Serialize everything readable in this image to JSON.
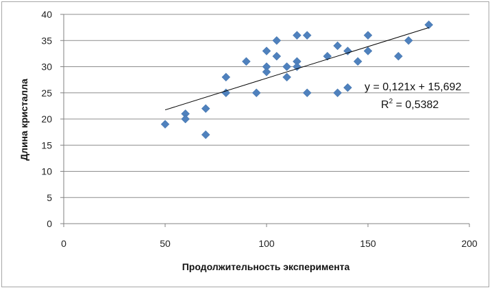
{
  "chart_data": {
    "type": "scatter",
    "xlabel": "Продолжительность эксперимента",
    "ylabel": "Длина кристалла",
    "xlim": [
      0,
      200
    ],
    "ylim": [
      0,
      40
    ],
    "x_ticks": [
      "0",
      "50",
      "100",
      "150",
      "200"
    ],
    "y_ticks": [
      "0",
      "5",
      "10",
      "15",
      "20",
      "25",
      "30",
      "35",
      "40"
    ],
    "grid": "horizontal",
    "marker_color": "#4f81bd",
    "trendline_color": "#000000",
    "points": [
      {
        "x": 50,
        "y": 19
      },
      {
        "x": 60,
        "y": 21
      },
      {
        "x": 60,
        "y": 20
      },
      {
        "x": 70,
        "y": 22
      },
      {
        "x": 70,
        "y": 17
      },
      {
        "x": 80,
        "y": 28
      },
      {
        "x": 80,
        "y": 25
      },
      {
        "x": 90,
        "y": 31
      },
      {
        "x": 95,
        "y": 25
      },
      {
        "x": 100,
        "y": 33
      },
      {
        "x": 100,
        "y": 30
      },
      {
        "x": 100,
        "y": 29
      },
      {
        "x": 105,
        "y": 35
      },
      {
        "x": 105,
        "y": 32
      },
      {
        "x": 110,
        "y": 30
      },
      {
        "x": 110,
        "y": 28
      },
      {
        "x": 115,
        "y": 36
      },
      {
        "x": 115,
        "y": 31
      },
      {
        "x": 115,
        "y": 30
      },
      {
        "x": 120,
        "y": 36
      },
      {
        "x": 120,
        "y": 25
      },
      {
        "x": 130,
        "y": 32
      },
      {
        "x": 135,
        "y": 34
      },
      {
        "x": 135,
        "y": 25
      },
      {
        "x": 140,
        "y": 33
      },
      {
        "x": 140,
        "y": 26
      },
      {
        "x": 145,
        "y": 31
      },
      {
        "x": 150,
        "y": 36
      },
      {
        "x": 150,
        "y": 33
      },
      {
        "x": 165,
        "y": 32
      },
      {
        "x": 170,
        "y": 35
      },
      {
        "x": 180,
        "y": 38
      }
    ],
    "trendline": {
      "slope": 0.121,
      "intercept": 15.692,
      "x_from": 50,
      "x_to": 180
    },
    "equation_label": "y = 0,121x + 15,692",
    "r2_label": {
      "prefix": "R",
      "sup": "2",
      "value": " = 0,5382"
    }
  }
}
